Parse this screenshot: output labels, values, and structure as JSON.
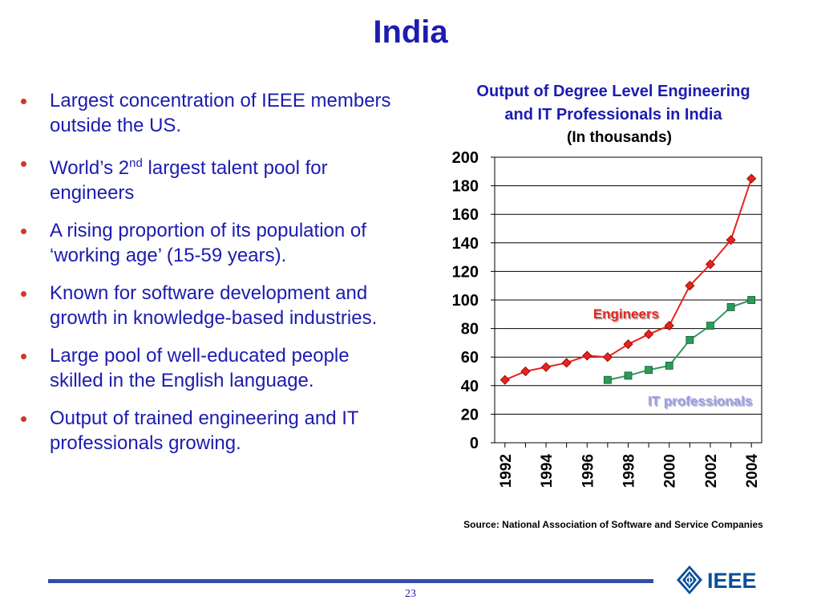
{
  "slide": {
    "title": "India",
    "page_number": "23",
    "bullets": [
      {
        "text": "Largest concentration of IEEE members outside the US."
      },
      {
        "text_before": "World’s 2",
        "sup": "nd",
        "text_after": " largest talent pool for engineers"
      },
      {
        "text": "A rising proportion of its population of ‘working age’ (15-59 years)."
      },
      {
        "text": "Known for software development and growth in knowledge-based industries."
      },
      {
        "text": "Large pool of well-educated people skilled in the English language."
      },
      {
        "text": "Output of trained engineering and IT professionals growing."
      }
    ],
    "source": "Source: National Association of Software and Service Companies",
    "logo_text": "IEEE",
    "colors": {
      "title": "#1c1cb0",
      "bullet": "#d2352b",
      "footer_line": "#2f4ea8"
    }
  },
  "chart_data": {
    "type": "line",
    "title_line1": "Output of Degree Level Engineering",
    "title_line2": "and IT Professionals in India",
    "subtitle": "(In thousands)",
    "ylim": [
      0,
      200
    ],
    "yticks": [
      0,
      20,
      40,
      60,
      80,
      100,
      120,
      140,
      160,
      180,
      200
    ],
    "xlim": [
      1991.5,
      2004.5
    ],
    "xticks": [
      1992,
      1994,
      1996,
      1998,
      2000,
      2002,
      2004
    ],
    "grid": true,
    "series": [
      {
        "name": "Engineers",
        "color": "#e8231c",
        "marker": "diamond",
        "x": [
          1992,
          1993,
          1994,
          1995,
          1996,
          1997,
          1998,
          1999,
          2000,
          2001,
          2002,
          2003,
          2004
        ],
        "values": [
          44,
          50,
          53,
          56,
          61,
          60,
          69,
          76,
          82,
          110,
          125,
          142,
          185
        ]
      },
      {
        "name": "IT professionals",
        "color": "#2e9a5a",
        "marker": "square",
        "x": [
          1997,
          1998,
          1999,
          2000,
          2001,
          2002,
          2003,
          2004
        ],
        "values": [
          44,
          47,
          51,
          54,
          72,
          82,
          95,
          100
        ]
      }
    ],
    "labels": [
      {
        "text": "Engineers",
        "color": "#e8231c",
        "x": 1997.9,
        "y": 87
      },
      {
        "text": "IT professionals",
        "color": "#9b9bf0",
        "x": 2001.5,
        "y": 26
      }
    ]
  }
}
